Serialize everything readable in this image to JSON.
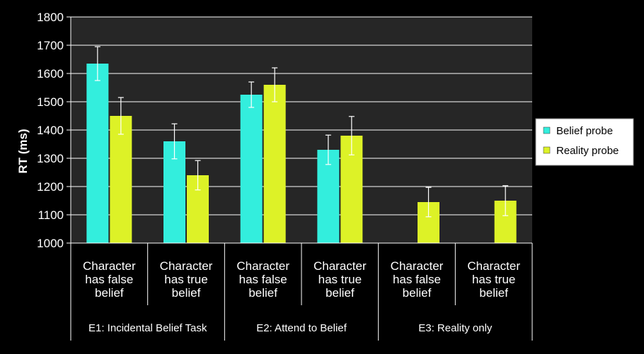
{
  "chart_data": {
    "type": "bar",
    "ylabel": "RT (ms)",
    "ylim": [
      1000,
      1800
    ],
    "yticks": [
      "1000",
      "1100",
      "1200",
      "1300",
      "1400",
      "1500",
      "1600",
      "1700",
      "1800"
    ],
    "grid": true,
    "legend_position": "right",
    "categories": [
      [
        "Character",
        "has false",
        "belief"
      ],
      [
        "Character",
        "has true",
        "belief"
      ],
      [
        "Character",
        "has false",
        "belief"
      ],
      [
        "Character",
        "has true",
        "belief"
      ],
      [
        "Character",
        "has false",
        "belief"
      ],
      [
        "Character",
        "has true",
        "belief"
      ]
    ],
    "groups": [
      {
        "label": "E1: Incidental Belief Task",
        "span": 2
      },
      {
        "label": "E2: Attend to Belief",
        "span": 2
      },
      {
        "label": "E3: Reality only",
        "span": 2
      }
    ],
    "series": [
      {
        "name": "Belief probe",
        "color": "#33eedd",
        "values": [
          1635,
          1360,
          1525,
          1330,
          null,
          null
        ],
        "errors": [
          60,
          62,
          45,
          52,
          null,
          null
        ]
      },
      {
        "name": "Reality probe",
        "color": "#ddf227",
        "values": [
          1450,
          1240,
          1560,
          1380,
          1145,
          1150
        ],
        "errors": [
          65,
          52,
          60,
          68,
          52,
          53
        ]
      }
    ]
  }
}
